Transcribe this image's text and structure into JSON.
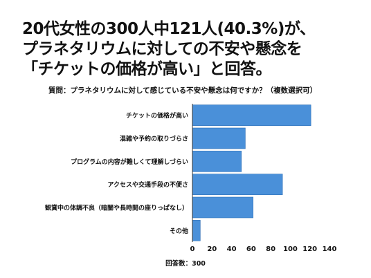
{
  "headline": {
    "lines": [
      "20代女性の300人中121人(40.3%)が、",
      "プラネタリウムに対しての不安や懸念を",
      "「チケットの価格が高い」と回答。"
    ]
  },
  "question": "質問：プラネタリウムに対して感じている不安や懸念は何ですか？（複数選択可）",
  "footnote": "回答数：300",
  "colors": {
    "bar": "#4a90d9",
    "bar_border": "#2e6fb6",
    "axis": "#333333",
    "text": "#111111"
  },
  "chart_data": {
    "type": "bar",
    "orientation": "horizontal",
    "categories": [
      "チケットの価格が高い",
      "混雑や予約の取りづらさ",
      "プログラムの内容が難しくて理解しづらい",
      "アクセスや交通手段の不便さ",
      "観賞中の体調不良（暗闇や長時間の座りっぱなし）",
      "その他"
    ],
    "values": [
      121,
      54,
      50,
      92,
      62,
      8
    ],
    "xlim": [
      0,
      140
    ],
    "xticks": [
      "0",
      "20",
      "40",
      "60",
      "80",
      "100",
      "120",
      "140"
    ],
    "grid": false
  }
}
